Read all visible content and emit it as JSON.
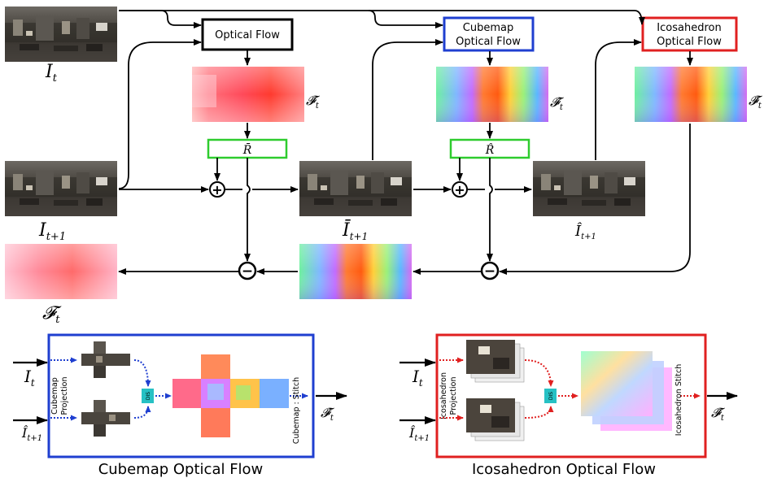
{
  "boxes": {
    "optical_flow": "Optical Flow",
    "cubemap_line1": "Cubemap",
    "cubemap_line2": "Optical Flow",
    "ico_line1": "Icosahedron",
    "ico_line2": "Optical Flow"
  },
  "labels": {
    "I_t": "I",
    "I_t_sub": "t",
    "I_t1": "I",
    "I_t1_sub": "t+1",
    "Ibar_t1": "Ī",
    "Ibar_t1_sub": "t+1",
    "Ihat_t1": "Î",
    "Ihat_t1_sub": "t+1",
    "F_t": "𝓕",
    "F_t_sub": "t",
    "Fbar_t": "𝓕̄",
    "Fbar_t_sub": "t",
    "Fhat_t": "𝓕̂",
    "Fhat_t_sub": "t",
    "Ftilde_t": "𝓕̃",
    "Ftilde_t_sub": "t",
    "Rbar": "R̄",
    "Rhat": "R̂",
    "plus": "+",
    "minus": "−"
  },
  "cubemap_panel": {
    "caption": "Cubemap Optical Flow",
    "projection_line1": "Cubemap",
    "projection_line2": "Projection",
    "stitch": "Cubemap : Stitch",
    "dis": "DIS",
    "in_top": "I",
    "in_top_sub": "t",
    "in_bottom": "Î",
    "in_bottom_sub": "t+1",
    "out": "𝓕̂",
    "out_sub": "t"
  },
  "ico_panel": {
    "caption": "Icosahedron Optical Flow",
    "projection_line1": "Icosahedron",
    "projection_line2": "Projection",
    "stitch": "Icosahedron  Stitch",
    "dis": "DIS",
    "in_top": "I",
    "in_top_sub": "t",
    "in_bottom": "Î",
    "in_bottom_sub": "t+1",
    "out": "𝓕̃",
    "out_sub": "t"
  },
  "colors": {
    "black_box": "#000000",
    "cubemap_blue": "#1f3fd0",
    "icosahedron_red": "#e02020",
    "residual_green": "#2ecc2e",
    "dis_teal": "#27c1c4"
  }
}
